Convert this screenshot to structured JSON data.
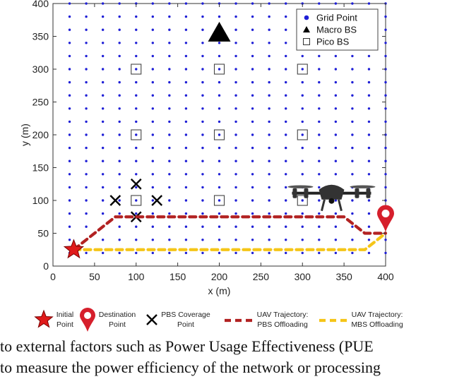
{
  "chart_data": {
    "type": "scatter",
    "xlabel": "x (m)",
    "ylabel": "y (m)",
    "xlim": [
      0,
      400
    ],
    "ylim": [
      0,
      400
    ],
    "xticks": [
      "0",
      "50",
      "100",
      "150",
      "200",
      "250",
      "300",
      "350",
      "400"
    ],
    "yticks": [
      "0",
      "50",
      "100",
      "150",
      "200",
      "250",
      "300",
      "350",
      "400"
    ],
    "grid_point_spacing": 20,
    "grid_points": {
      "x_start": 0,
      "x_end": 400,
      "y_start": 0,
      "y_end": 400,
      "step": 20
    },
    "macro_bs": [
      {
        "x": 200,
        "y": 355
      }
    ],
    "pico_bs": [
      {
        "x": 100,
        "y": 300
      },
      {
        "x": 200,
        "y": 300
      },
      {
        "x": 300,
        "y": 300
      },
      {
        "x": 100,
        "y": 200
      },
      {
        "x": 200,
        "y": 200
      },
      {
        "x": 300,
        "y": 200
      },
      {
        "x": 100,
        "y": 100
      },
      {
        "x": 200,
        "y": 100
      },
      {
        "x": 300,
        "y": 100
      }
    ],
    "pbs_coverage_points": [
      {
        "x": 75,
        "y": 100
      },
      {
        "x": 100,
        "y": 125
      },
      {
        "x": 125,
        "y": 100
      },
      {
        "x": 100,
        "y": 75
      }
    ],
    "initial_point": {
      "x": 25,
      "y": 25
    },
    "destination_point": {
      "x": 400,
      "y": 50
    },
    "trajectory_pbs": [
      {
        "x": 25,
        "y": 25
      },
      {
        "x": 75,
        "y": 75
      },
      {
        "x": 350,
        "y": 75
      },
      {
        "x": 375,
        "y": 50
      },
      {
        "x": 400,
        "y": 50
      }
    ],
    "trajectory_mbs": [
      {
        "x": 25,
        "y": 25
      },
      {
        "x": 375,
        "y": 25
      },
      {
        "x": 400,
        "y": 50
      }
    ],
    "uav_icon_position": {
      "x": 335,
      "y": 110
    },
    "legend_placement": "top-right",
    "legend": [
      {
        "label": "Grid Point",
        "marker": "dot"
      },
      {
        "label": "Macro BS",
        "marker": "triangle"
      },
      {
        "label": "Pico BS",
        "marker": "square"
      }
    ],
    "key": [
      {
        "line1": "Initial",
        "line2": "Point",
        "icon": "star-icon"
      },
      {
        "line1": "Destination",
        "line2": "Point",
        "icon": "map-pin-icon"
      },
      {
        "line1": "PBS Coverage",
        "line2": "Point",
        "icon": "cross-icon"
      },
      {
        "line1": "UAV Trajectory:",
        "line2": "PBS Offloading",
        "icon": "dashed-red-line-icon"
      },
      {
        "line1": "UAV Trajectory:",
        "line2": "MBS Offloading",
        "icon": "dashed-yellow-line-icon"
      }
    ],
    "colors": {
      "grid_point": "#1f1fd6",
      "pbs_trajectory": "#b22222",
      "mbs_trajectory": "#f5c518",
      "star": "#e01b1b",
      "pin": "#d61f2c",
      "marker_black": "#000000"
    }
  },
  "caption": {
    "line1": "to external factors such as Power Usage Effectiveness (PUE",
    "line2": "to measure the power efficiency of the network or processing"
  }
}
